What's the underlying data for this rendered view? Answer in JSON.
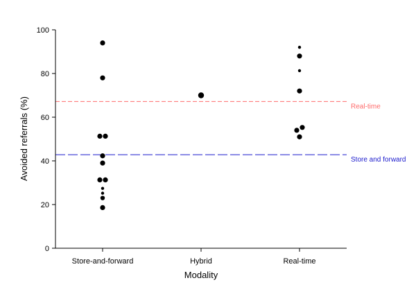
{
  "chart_data": {
    "type": "scatter",
    "xlabel": "Modality",
    "ylabel": "Avoided referrals (%)",
    "ylim": [
      0,
      100
    ],
    "yticks": [
      "0",
      "20",
      "40",
      "60",
      "80",
      "100"
    ],
    "categories": [
      "Store-and-forward",
      "Hybrid",
      "Real-time"
    ],
    "points": [
      {
        "category": "Store-and-forward",
        "y": 94,
        "size": "large"
      },
      {
        "category": "Store-and-forward",
        "y": 78,
        "size": "large"
      },
      {
        "category": "Store-and-forward",
        "y": 51.3,
        "size": "large",
        "offset": -1
      },
      {
        "category": "Store-and-forward",
        "y": 51.3,
        "size": "large",
        "offset": 1
      },
      {
        "category": "Store-and-forward",
        "y": 42.3,
        "size": "large"
      },
      {
        "category": "Store-and-forward",
        "y": 39,
        "size": "large"
      },
      {
        "category": "Store-and-forward",
        "y": 31.3,
        "size": "large",
        "offset": -1
      },
      {
        "category": "Store-and-forward",
        "y": 31.3,
        "size": "large",
        "offset": 1
      },
      {
        "category": "Store-and-forward",
        "y": 27.4,
        "size": "small"
      },
      {
        "category": "Store-and-forward",
        "y": 25.2,
        "size": "small"
      },
      {
        "category": "Store-and-forward",
        "y": 23,
        "size": "medium"
      },
      {
        "category": "Store-and-forward",
        "y": 18.6,
        "size": "large"
      },
      {
        "category": "Hybrid",
        "y": 70,
        "size": "xlarge"
      },
      {
        "category": "Real-time",
        "y": 92,
        "size": "small"
      },
      {
        "category": "Real-time",
        "y": 88,
        "size": "large"
      },
      {
        "category": "Real-time",
        "y": 81.3,
        "size": "small"
      },
      {
        "category": "Real-time",
        "y": 72,
        "size": "large"
      },
      {
        "category": "Real-time",
        "y": 55.3,
        "size": "large",
        "offset": 1
      },
      {
        "category": "Real-time",
        "y": 54,
        "size": "large",
        "offset": -1
      },
      {
        "category": "Real-time",
        "y": 51,
        "size": "large"
      }
    ],
    "reference_lines": [
      {
        "label": "Real-time",
        "y": 67.2,
        "color": "#ff6a6a",
        "dash": "short"
      },
      {
        "label": "Store and forward",
        "y": 42.8,
        "color": "#1a1acc",
        "dash": "long"
      }
    ]
  }
}
